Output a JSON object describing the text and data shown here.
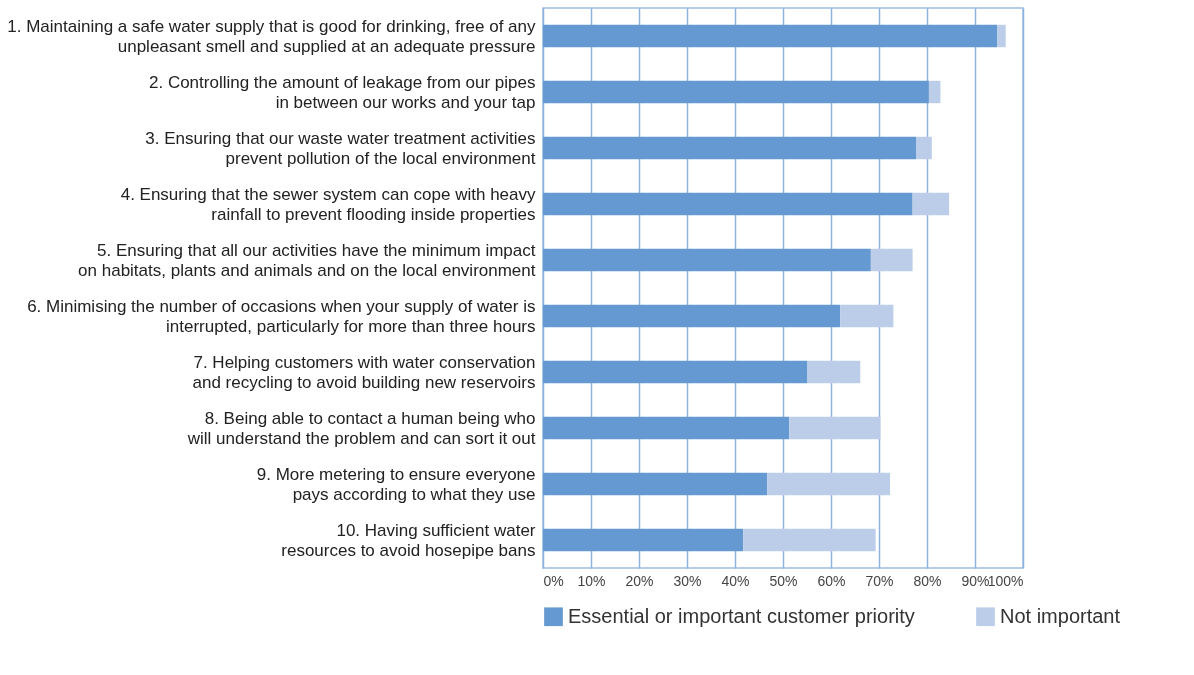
{
  "chart_data": {
    "type": "bar",
    "orientation": "horizontal",
    "stacked": true,
    "categories": [
      "1. Maintaining a safe water supply that is good for drinking, free of any\nunpleasant smell and supplied at an adequate pressure",
      "2. Controlling the amount of leakage from our pipes\nin between our works and your tap",
      "3. Ensuring that our waste water treatment activities\nprevent pollution of the local environment",
      "4. Ensuring that the sewer system can cope with heavy\nrainfall to prevent flooding inside properties",
      "5. Ensuring that all our activities have the minimum impact\non habitats, plants and animals and on the local environment",
      "6. Minimising the number of occasions when your supply of water is\ninterrupted, particularly for more than three hours",
      "7. Helping customers with water conservation\nand recycling to  avoid building new reservoirs",
      "8. Being able to contact a human being who\nwill understand the problem and can sort it out",
      "9. More metering to ensure everyone\npays according to what they use",
      "10. Having sufficient water\nresources to avoid hosepipe bans"
    ],
    "series": [
      {
        "name": "Essential or important customer priority",
        "color": "#6599d1",
        "values": [
          94.6,
          80.4,
          77.8,
          77.0,
          68.3,
          61.9,
          55.1,
          51.3,
          46.7,
          41.7
        ]
      },
      {
        "name": "Not important",
        "color": "#bccde9",
        "values": [
          1.8,
          2.4,
          3.2,
          7.6,
          8.7,
          11.1,
          11.0,
          19.0,
          25.6,
          27.6
        ]
      }
    ],
    "xlim": [
      0,
      100
    ],
    "xticks": [
      {
        "value": 0,
        "label": "0%"
      },
      {
        "value": 10,
        "label": "10%"
      },
      {
        "value": 20,
        "label": "20%"
      },
      {
        "value": 30,
        "label": "30%"
      },
      {
        "value": 40,
        "label": "40%"
      },
      {
        "value": 50,
        "label": "50%"
      },
      {
        "value": 60,
        "label": "60%"
      },
      {
        "value": 70,
        "label": "70%"
      },
      {
        "value": 80,
        "label": "80%"
      },
      {
        "value": 90,
        "label": "90%"
      },
      {
        "value": 100,
        "label": "100%"
      }
    ],
    "grid": "x",
    "legend": "bottom"
  }
}
